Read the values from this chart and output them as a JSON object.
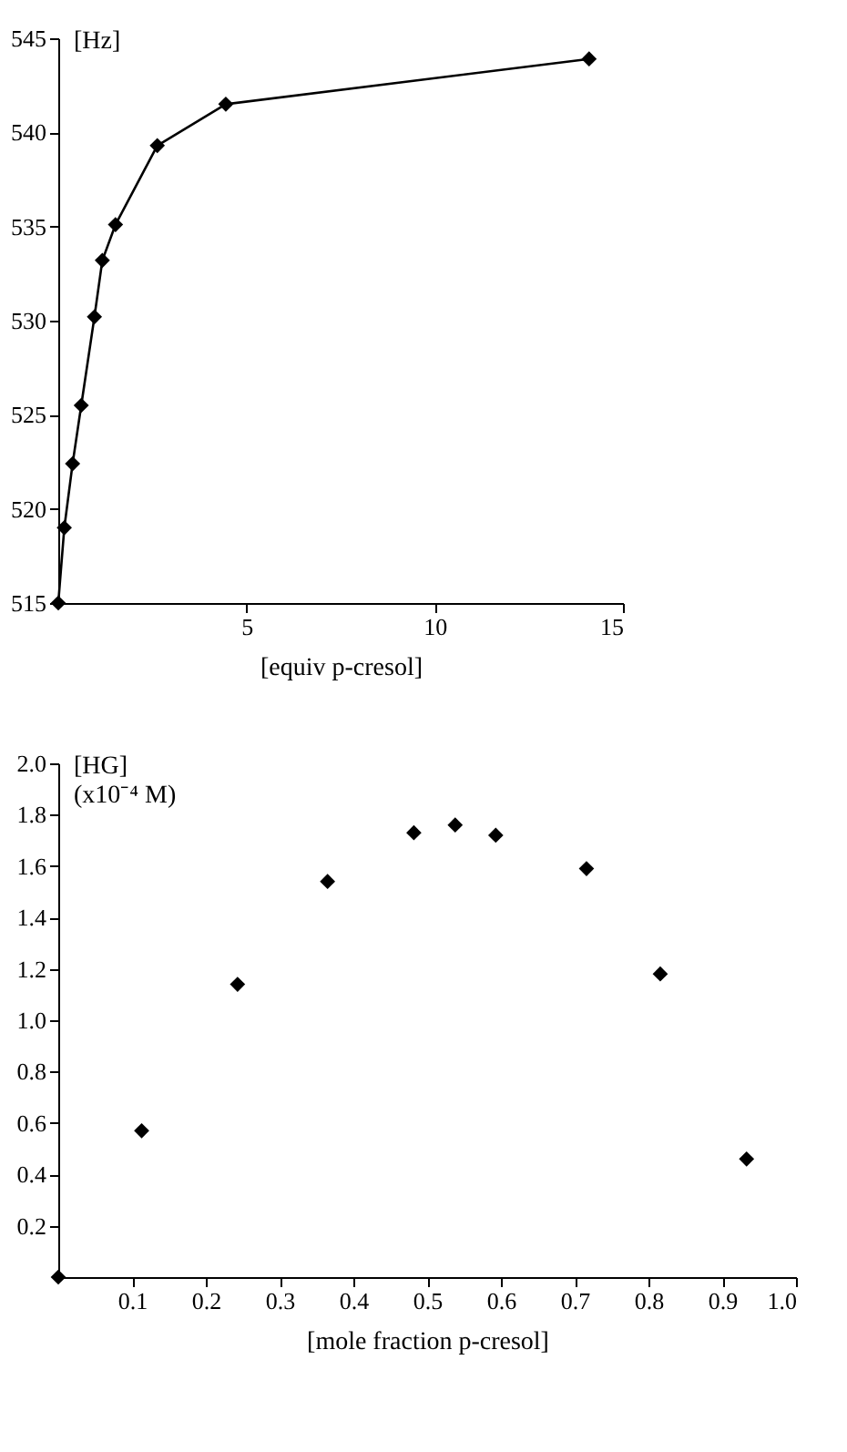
{
  "chart_data": [
    {
      "type": "line",
      "xlabel": "[equiv p-cresol]",
      "ylabel": "[Hz]",
      "x": [
        0,
        0.16,
        0.38,
        0.61,
        0.96,
        1.17,
        1.52,
        2.63,
        4.45,
        14.1
      ],
      "series": [
        {
          "color": "#000000",
          "values": [
            515,
            519.0,
            522.4,
            525.5,
            530.2,
            533.2,
            535.1,
            539.3,
            541.5,
            543.9
          ]
        }
      ],
      "xlim": [
        0,
        15
      ],
      "xticks": [
        5,
        10,
        15
      ],
      "ylim": [
        515,
        545
      ],
      "yticks": [
        515,
        520,
        525,
        530,
        535,
        540,
        545
      ],
      "marker": "diamond",
      "line_style": "solid",
      "grid": false
    },
    {
      "type": "scatter",
      "xlabel": "[mole fraction p-cresol]",
      "ylabel": "[HG]\n(x10⁻⁴ M)",
      "x": [
        0,
        0.113,
        0.243,
        0.365,
        0.482,
        0.538,
        0.593,
        0.716,
        0.816,
        0.933
      ],
      "series": [
        {
          "color": "#000000",
          "values": [
            0,
            0.57,
            1.14,
            1.54,
            1.73,
            1.76,
            1.72,
            1.59,
            1.18,
            0.46
          ]
        }
      ],
      "xlim": [
        0,
        1.0
      ],
      "xticks": [
        0.1,
        0.2,
        0.3,
        0.4,
        0.5,
        0.6,
        0.7,
        0.8,
        0.9,
        {
          "value": 1.0,
          "label": "1.0"
        }
      ],
      "ylim": [
        0,
        2.0
      ],
      "yticks": [
        0.2,
        0.4,
        0.6,
        0.8,
        {
          "value": 1.0,
          "label": "1.0"
        },
        1.2,
        1.4,
        1.6,
        1.8,
        {
          "value": 2.0,
          "label": "2.0"
        }
      ],
      "marker": "diamond",
      "grid": false
    }
  ]
}
